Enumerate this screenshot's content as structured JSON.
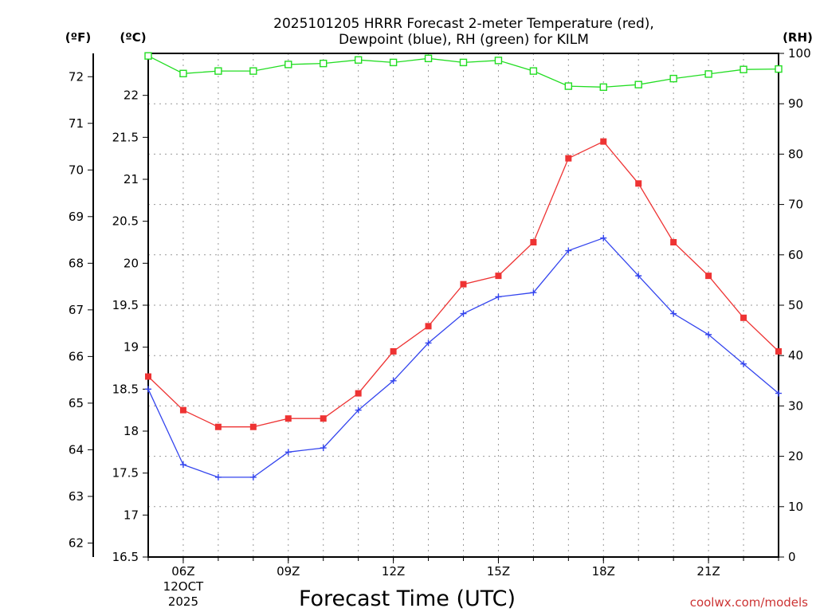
{
  "chart_data": {
    "type": "line",
    "title_line1": "2025101205 HRRR Forecast 2-meter Temperature (red),",
    "title_line2": "Dewpoint (blue), RH (green) for KILM",
    "x_hours": [
      5,
      6,
      7,
      8,
      9,
      10,
      11,
      12,
      13,
      14,
      15,
      16,
      17,
      18,
      19,
      20,
      21,
      22,
      23
    ],
    "xlim": [
      5,
      23
    ],
    "x_ticks": [
      {
        "hour": 6,
        "label": "06Z",
        "sub1": "12OCT",
        "sub2": "2025"
      },
      {
        "hour": 9,
        "label": "09Z"
      },
      {
        "hour": 12,
        "label": "12Z"
      },
      {
        "hour": 15,
        "label": "15Z"
      },
      {
        "hour": 18,
        "label": "18Z"
      },
      {
        "hour": 21,
        "label": "21Z"
      }
    ],
    "xlabel": "Forecast Time (UTC)",
    "celsius_axis": {
      "unit_label": "(ºC)",
      "ylim": [
        16.5,
        22.5
      ],
      "ticks": [
        "16.5",
        "17",
        "17.5",
        "18",
        "18.5",
        "19",
        "19.5",
        "20",
        "20.5",
        "21",
        "21.5",
        "22"
      ]
    },
    "fahrenheit_axis": {
      "unit_label": "(ºF)",
      "ticks": [
        "62",
        "63",
        "64",
        "65",
        "66",
        "67",
        "68",
        "69",
        "70",
        "71",
        "72"
      ]
    },
    "rh_axis": {
      "unit_label": "(RH)",
      "ylim": [
        0,
        100
      ],
      "ticks": [
        "0",
        "10",
        "20",
        "30",
        "40",
        "50",
        "60",
        "70",
        "80",
        "90",
        "100"
      ]
    },
    "series": [
      {
        "name": "Temperature",
        "color": "#ee3333",
        "marker": "filled-square",
        "axis": "celsius",
        "values": [
          18.65,
          18.25,
          18.05,
          18.05,
          18.15,
          18.15,
          18.45,
          18.95,
          19.25,
          19.75,
          19.85,
          20.25,
          21.25,
          21.45,
          20.95,
          20.25,
          19.85,
          19.35,
          18.95
        ]
      },
      {
        "name": "Dewpoint",
        "color": "#3344ee",
        "marker": "plus",
        "axis": "celsius",
        "values": [
          18.5,
          17.6,
          17.45,
          17.45,
          17.75,
          17.8,
          18.25,
          18.6,
          19.05,
          19.4,
          19.6,
          19.65,
          20.15,
          20.3,
          19.85,
          19.4,
          19.15,
          18.8,
          18.45
        ]
      },
      {
        "name": "RH",
        "color": "#22dd22",
        "marker": "open-square",
        "axis": "rh",
        "values": [
          99.5,
          96.0,
          96.5,
          96.5,
          97.8,
          98.0,
          98.7,
          98.2,
          99.0,
          98.2,
          98.6,
          96.5,
          93.5,
          93.3,
          93.8,
          95.0,
          95.9,
          96.8,
          96.9
        ]
      }
    ]
  },
  "credit": "coolwx.com/models"
}
